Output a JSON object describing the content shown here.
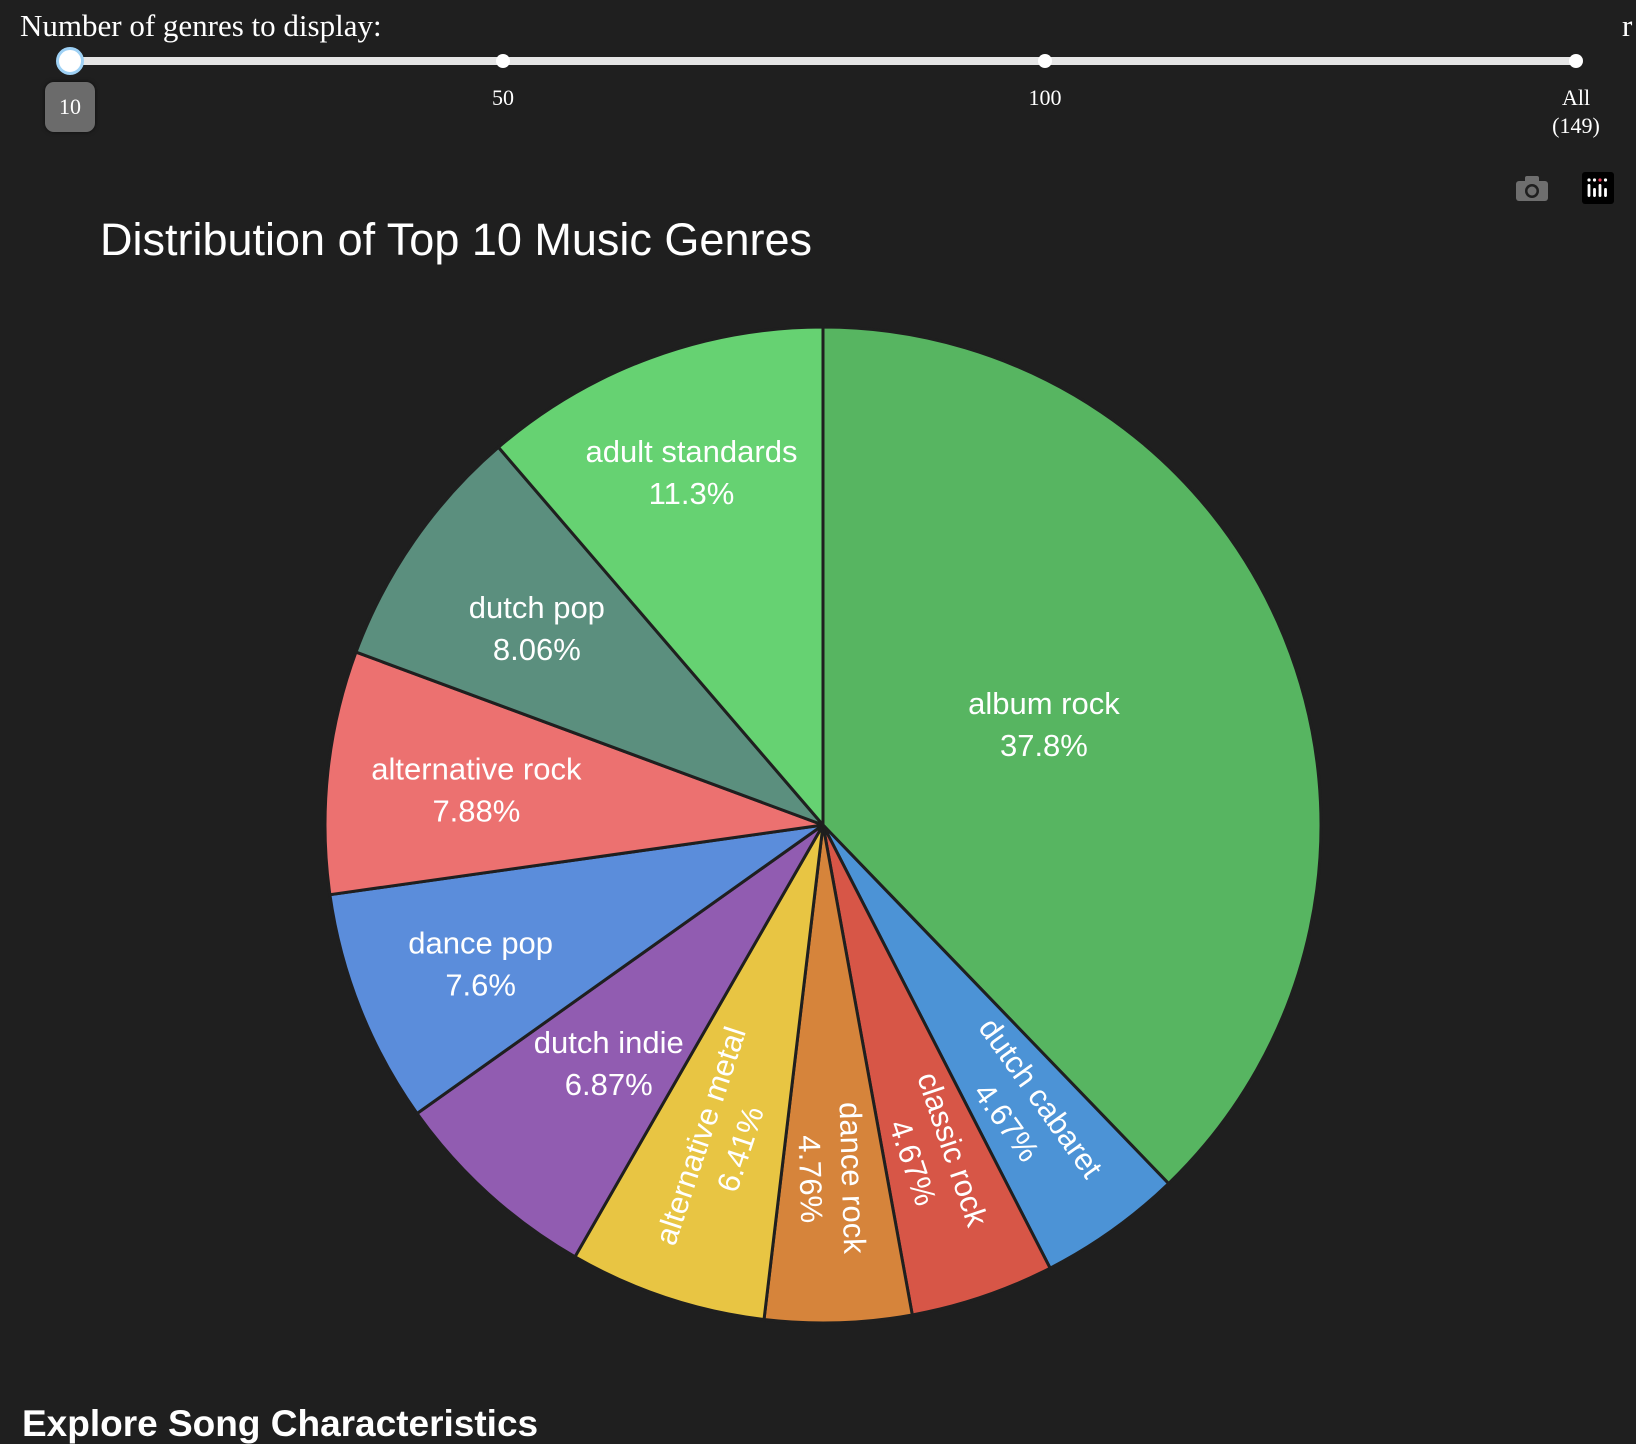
{
  "slider": {
    "label": "Number of genres to display:",
    "current_value": "10",
    "ticks": [
      {
        "value": 10,
        "label_line1": "",
        "label_line2": ""
      },
      {
        "value": 50,
        "label_line1": "50",
        "label_line2": ""
      },
      {
        "value": 100,
        "label_line1": "100",
        "label_line2": ""
      },
      {
        "value": 149,
        "label_line1": "All",
        "label_line2": "(149)"
      }
    ],
    "edge_glyph": "r"
  },
  "modebar": {
    "icons": [
      "camera-icon",
      "plotly-logo-icon"
    ]
  },
  "chart_data": {
    "type": "pie",
    "title": "Distribution of Top 10 Music Genres",
    "slices": [
      {
        "label": "album rock",
        "percent": 37.8,
        "percent_text": "37.8%",
        "color": "#57b561"
      },
      {
        "label": "dutch cabaret",
        "percent": 4.67,
        "percent_text": "4.67%",
        "color": "#4c93d6"
      },
      {
        "label": "classic rock",
        "percent": 4.67,
        "percent_text": "4.67%",
        "color": "#d75647"
      },
      {
        "label": "dance rock",
        "percent": 4.76,
        "percent_text": "4.76%",
        "color": "#d6843b"
      },
      {
        "label": "alternative metal",
        "percent": 6.41,
        "percent_text": "6.41%",
        "color": "#e8c543"
      },
      {
        "label": "dutch indie",
        "percent": 6.87,
        "percent_text": "6.87%",
        "color": "#915cb1"
      },
      {
        "label": "dance pop",
        "percent": 7.6,
        "percent_text": "7.6%",
        "color": "#5b8ddb"
      },
      {
        "label": "alternative rock",
        "percent": 7.88,
        "percent_text": "7.88%",
        "color": "#ec7170"
      },
      {
        "label": "dutch pop",
        "percent": 8.06,
        "percent_text": "8.06%",
        "color": "#5b8f7e"
      },
      {
        "label": "adult standards",
        "percent": 11.3,
        "percent_text": "11.3%",
        "color": "#66d272"
      }
    ]
  },
  "section": {
    "heading": "Explore Song Characteristics"
  }
}
